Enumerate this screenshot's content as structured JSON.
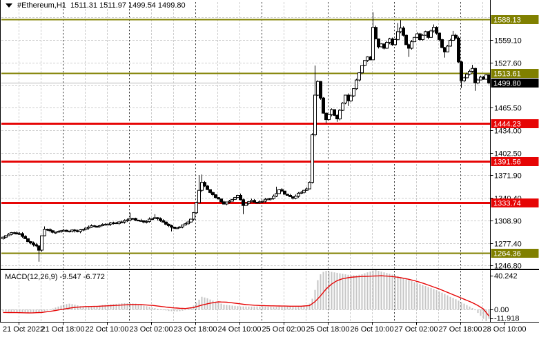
{
  "window": {
    "title_text": "#Ethereum,H1  1511.31 1511.97 1499.54 1499.80"
  },
  "colors": {
    "level_olive": "#808000",
    "level_red": "#e60505",
    "current_badge": "#000000",
    "grid": "#cdcdcd",
    "separator": "#3c3c3c",
    "bid_line": "#b4b4b4",
    "candle_outline": "#000000",
    "candle_up_fill": "#ffffff",
    "candle_down_fill": "#000000",
    "macd_hist": "#c5c5c5",
    "macd_signal": "#e60505"
  },
  "chart_data": {
    "type": "candlestick",
    "symbol": "#Ethereum",
    "timeframe": "H1",
    "last_quote": {
      "open": 1511.31,
      "high": 1511.97,
      "low": 1499.54,
      "close": 1499.8
    },
    "x_axis": {
      "labels": [
        "21 Oct 2022",
        "21 Oct 18:00",
        "22 Oct 10:00",
        "23 Oct 02:00",
        "23 Oct 18:00",
        "24 Oct 10:00",
        "25 Oct 02:00",
        "25 Oct 18:00",
        "26 Oct 10:00",
        "27 Oct 02:00",
        "27 Oct 18:00",
        "28 Oct 10:00"
      ]
    },
    "y_axis": {
      "ticks": [
        "1559.10",
        "1527.60",
        "1465.50",
        "1434.00",
        "1402.50",
        "1371.90",
        "1340.40",
        "1308.90",
        "1277.40",
        "1246.80"
      ],
      "hidden_grid_prices": [
        1590.6,
        1496.55
      ]
    },
    "levels": [
      {
        "price": "1588.13",
        "color": "#808000"
      },
      {
        "price": "1513.61",
        "color": "#808000"
      },
      {
        "price": "1444.23",
        "color": "#e60505"
      },
      {
        "price": "1391.56",
        "color": "#e60505"
      },
      {
        "price": "1333.74",
        "color": "#e60505"
      },
      {
        "price": "1264.36",
        "color": "#808000"
      }
    ],
    "current_price": "1499.80",
    "bars": 177,
    "first_open": 1284,
    "close_waypoints": [
      [
        0,
        1286
      ],
      [
        2,
        1290
      ],
      [
        4,
        1292
      ],
      [
        6,
        1291
      ],
      [
        8,
        1284
      ],
      [
        10,
        1278
      ],
      [
        12,
        1274
      ],
      [
        13,
        1268
      ],
      [
        14,
        1288
      ],
      [
        15,
        1297
      ],
      [
        17,
        1295
      ],
      [
        19,
        1293
      ],
      [
        21,
        1295
      ],
      [
        23,
        1294
      ],
      [
        25,
        1296
      ],
      [
        27,
        1294
      ],
      [
        29,
        1297
      ],
      [
        31,
        1300
      ],
      [
        33,
        1301
      ],
      [
        35,
        1302
      ],
      [
        37,
        1304
      ],
      [
        39,
        1306
      ],
      [
        41,
        1305
      ],
      [
        43,
        1307
      ],
      [
        45,
        1310
      ],
      [
        47,
        1312
      ],
      [
        49,
        1309
      ],
      [
        51,
        1307
      ],
      [
        53,
        1311
      ],
      [
        55,
        1313
      ],
      [
        57,
        1309
      ],
      [
        59,
        1304
      ],
      [
        61,
        1300
      ],
      [
        63,
        1299
      ],
      [
        65,
        1303
      ],
      [
        67,
        1307
      ],
      [
        68,
        1311
      ],
      [
        69,
        1320
      ],
      [
        70,
        1334
      ],
      [
        71,
        1351
      ],
      [
        72,
        1362
      ],
      [
        73,
        1357
      ],
      [
        74,
        1352
      ],
      [
        76,
        1345
      ],
      [
        78,
        1339
      ],
      [
        80,
        1332
      ],
      [
        82,
        1336
      ],
      [
        84,
        1341
      ],
      [
        85,
        1344
      ],
      [
        86,
        1338
      ],
      [
        87,
        1330
      ],
      [
        88,
        1333
      ],
      [
        90,
        1337
      ],
      [
        92,
        1334
      ],
      [
        94,
        1336
      ],
      [
        96,
        1339
      ],
      [
        98,
        1343
      ],
      [
        100,
        1352
      ],
      [
        101,
        1350
      ],
      [
        103,
        1344
      ],
      [
        105,
        1340
      ],
      [
        107,
        1347
      ],
      [
        109,
        1351
      ],
      [
        110,
        1353
      ],
      [
        111,
        1362
      ],
      [
        112,
        1428
      ],
      [
        113,
        1483
      ],
      [
        114,
        1502
      ],
      [
        115,
        1479
      ],
      [
        116,
        1458
      ],
      [
        117,
        1449
      ],
      [
        118,
        1456
      ],
      [
        119,
        1463
      ],
      [
        120,
        1455
      ],
      [
        121,
        1450
      ],
      [
        122,
        1462
      ],
      [
        123,
        1472
      ],
      [
        124,
        1483
      ],
      [
        125,
        1475
      ],
      [
        126,
        1482
      ],
      [
        127,
        1492
      ],
      [
        128,
        1504
      ],
      [
        129,
        1514
      ],
      [
        130,
        1524
      ],
      [
        131,
        1531
      ],
      [
        132,
        1536
      ],
      [
        133,
        1532
      ],
      [
        134,
        1577
      ],
      [
        135,
        1561
      ],
      [
        136,
        1550
      ],
      [
        137,
        1554
      ],
      [
        138,
        1548
      ],
      [
        139,
        1556
      ],
      [
        140,
        1561
      ],
      [
        141,
        1553
      ],
      [
        142,
        1560
      ],
      [
        143,
        1571
      ],
      [
        144,
        1576
      ],
      [
        145,
        1566
      ],
      [
        146,
        1553
      ],
      [
        147,
        1548
      ],
      [
        148,
        1557
      ],
      [
        149,
        1563
      ],
      [
        150,
        1568
      ],
      [
        151,
        1560
      ],
      [
        152,
        1566
      ],
      [
        153,
        1571
      ],
      [
        154,
        1563
      ],
      [
        155,
        1572
      ],
      [
        156,
        1577
      ],
      [
        157,
        1569
      ],
      [
        158,
        1560
      ],
      [
        159,
        1549
      ],
      [
        160,
        1543
      ],
      [
        161,
        1551
      ],
      [
        162,
        1559
      ],
      [
        163,
        1566
      ],
      [
        164,
        1562
      ],
      [
        165,
        1529
      ],
      [
        166,
        1503
      ],
      [
        167,
        1507
      ],
      [
        168,
        1512
      ],
      [
        169,
        1516
      ],
      [
        170,
        1520
      ],
      [
        171,
        1500
      ],
      [
        172,
        1504
      ],
      [
        173,
        1508
      ],
      [
        174,
        1505
      ],
      [
        175,
        1511
      ],
      [
        176,
        1499.8
      ]
    ],
    "wick_highs": {
      "15": 1301,
      "46": 1320,
      "55": 1318,
      "71": 1372,
      "72": 1373,
      "99": 1356,
      "113": 1524,
      "134": 1598,
      "143": 1583,
      "144": 1587,
      "156": 1581,
      "163": 1572,
      "170": 1525,
      "176": 1511.97
    },
    "wick_lows": {
      "13": 1252,
      "61": 1294,
      "87": 1318,
      "117": 1444,
      "121": 1446,
      "125": 1468,
      "147": 1536,
      "160": 1535,
      "166": 1493,
      "171": 1489,
      "176": 1499.54
    },
    "macd": {
      "label": "MACD(12,26,9) -9.547 -6.772",
      "params": "12,26,9",
      "main_value": -9.547,
      "signal_value": -6.772,
      "scale_max": "40.242",
      "zero_label": "0.00",
      "scale_min": "-11.918",
      "hist_waypoints": [
        [
          0,
          -2
        ],
        [
          4,
          -2.5
        ],
        [
          8,
          -3
        ],
        [
          12,
          -3.5
        ],
        [
          14,
          -2.5
        ],
        [
          16,
          -1
        ],
        [
          18,
          1
        ],
        [
          20,
          3
        ],
        [
          22,
          5
        ],
        [
          24,
          6
        ],
        [
          26,
          5
        ],
        [
          28,
          3.5
        ],
        [
          30,
          2.5
        ],
        [
          33,
          3
        ],
        [
          36,
          4.5
        ],
        [
          40,
          5.5
        ],
        [
          44,
          6.5
        ],
        [
          48,
          6
        ],
        [
          51,
          4
        ],
        [
          54,
          2
        ],
        [
          57,
          0.2
        ],
        [
          60,
          -1.5
        ],
        [
          63,
          -2
        ],
        [
          65,
          -1.2
        ],
        [
          67,
          0.5
        ],
        [
          69,
          4
        ],
        [
          71,
          10
        ],
        [
          72,
          13
        ],
        [
          74,
          11.5
        ],
        [
          76,
          9
        ],
        [
          78,
          7
        ],
        [
          80,
          5
        ],
        [
          83,
          4
        ],
        [
          86,
          3.2
        ],
        [
          90,
          3
        ],
        [
          94,
          3.2
        ],
        [
          98,
          2.6
        ],
        [
          102,
          3
        ],
        [
          106,
          2.6
        ],
        [
          109,
          3.2
        ],
        [
          111,
          6
        ],
        [
          112,
          11
        ],
        [
          113,
          20
        ],
        [
          114,
          30
        ],
        [
          115,
          36
        ],
        [
          116,
          38.5
        ],
        [
          117,
          39.5
        ],
        [
          118,
          39
        ],
        [
          120,
          38
        ],
        [
          122,
          37
        ],
        [
          124,
          36
        ],
        [
          126,
          35
        ],
        [
          128,
          35
        ],
        [
          130,
          36
        ],
        [
          132,
          38
        ],
        [
          134,
          39.8
        ],
        [
          135,
          40.242
        ],
        [
          136,
          39.5
        ],
        [
          138,
          38
        ],
        [
          140,
          36.5
        ],
        [
          142,
          35
        ],
        [
          144,
          33
        ],
        [
          146,
          31
        ],
        [
          148,
          29
        ],
        [
          150,
          27
        ],
        [
          152,
          25
        ],
        [
          154,
          23
        ],
        [
          156,
          21
        ],
        [
          158,
          18.5
        ],
        [
          160,
          16
        ],
        [
          162,
          13
        ],
        [
          164,
          10.5
        ],
        [
          166,
          7.5
        ],
        [
          168,
          4.5
        ],
        [
          170,
          1.5
        ],
        [
          171,
          -0.5
        ],
        [
          172,
          -3.5
        ],
        [
          173,
          -6.5
        ],
        [
          174,
          -9.5
        ],
        [
          175,
          -11.918
        ],
        [
          176,
          -9.547
        ]
      ],
      "signal_waypoints": [
        [
          0,
          -3
        ],
        [
          5,
          -3.2
        ],
        [
          10,
          -3.5
        ],
        [
          14,
          -3
        ],
        [
          18,
          -1.5
        ],
        [
          22,
          0.5
        ],
        [
          26,
          2.2
        ],
        [
          30,
          3
        ],
        [
          34,
          3.2
        ],
        [
          38,
          3.8
        ],
        [
          42,
          4.4
        ],
        [
          46,
          5
        ],
        [
          50,
          5
        ],
        [
          54,
          4.2
        ],
        [
          58,
          2.8
        ],
        [
          62,
          1.6
        ],
        [
          66,
          1
        ],
        [
          69,
          2
        ],
        [
          72,
          4.5
        ],
        [
          75,
          6.5
        ],
        [
          78,
          7.8
        ],
        [
          81,
          7.5
        ],
        [
          84,
          6.5
        ],
        [
          88,
          5
        ],
        [
          92,
          4.2
        ],
        [
          96,
          3.8
        ],
        [
          100,
          3.6
        ],
        [
          104,
          3.4
        ],
        [
          108,
          3.4
        ],
        [
          111,
          4
        ],
        [
          113,
          8
        ],
        [
          115,
          14
        ],
        [
          117,
          21
        ],
        [
          119,
          26
        ],
        [
          121,
          29.5
        ],
        [
          123,
          31.5
        ],
        [
          126,
          33
        ],
        [
          130,
          33.8
        ],
        [
          134,
          34.2
        ],
        [
          137,
          34.5
        ],
        [
          140,
          34
        ],
        [
          143,
          33
        ],
        [
          146,
          31.5
        ],
        [
          149,
          29.5
        ],
        [
          152,
          27
        ],
        [
          155,
          24
        ],
        [
          158,
          21
        ],
        [
          161,
          17.5
        ],
        [
          164,
          14
        ],
        [
          167,
          10.5
        ],
        [
          170,
          7
        ],
        [
          172,
          4
        ],
        [
          174,
          0.5
        ],
        [
          175,
          -3
        ],
        [
          176,
          -6.772
        ]
      ]
    }
  }
}
